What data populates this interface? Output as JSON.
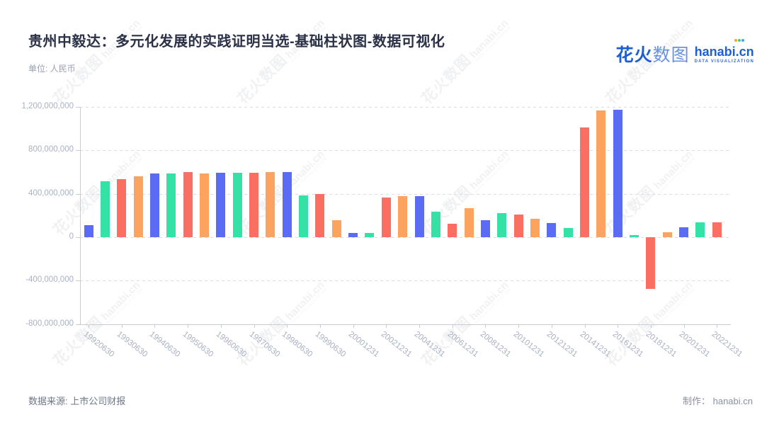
{
  "header": {
    "title": "贵州中毅达：多元化发展的实践证明当选-基础柱状图-数据可视化",
    "unit_label": "单位: 人民币"
  },
  "logo": {
    "cjk_strong": "花火",
    "cjk_light": "数图",
    "domain": "hanabi.cn",
    "caption": "DATA VISUALIZATION"
  },
  "watermark": {
    "cjk": "花火数图",
    "domain": "hanabi.cn",
    "caption": "DATA VISUALIZATION"
  },
  "footer": {
    "source": "数据来源: 上市公司财报",
    "credit": "制作： hanabi.cn"
  },
  "colors": {
    "blue": "#5A6CF3",
    "green": "#35E1A4",
    "red": "#FB6E62",
    "orange": "#FCA45F",
    "logo_blue": "#1E5ED0",
    "title_text": "#2B3147",
    "axis_text": "#A9B1C2",
    "grid": "#DBDDE3",
    "axis_line": "#C8CCD4",
    "spark_orange": "#F7A823",
    "spark_green": "#44C98C",
    "spark_blue": "#3FA8E8"
  },
  "chart_data": {
    "type": "bar",
    "title": "贵州中毅达：多元化发展的实践证明当选-基础柱状图-数据可视化",
    "ylabel": "人民币",
    "ylim": [
      -800000000,
      1200000000
    ],
    "grid": "dashed-horizontal",
    "legend": "none",
    "y_ticks": [
      {
        "value": 1200000000,
        "label": "1,200,000,000"
      },
      {
        "value": 800000000,
        "label": "800,000,000"
      },
      {
        "value": 400000000,
        "label": "400,000,000"
      },
      {
        "value": 0,
        "label": "0"
      },
      {
        "value": -400000000,
        "label": "-400,000,000"
      },
      {
        "value": -800000000,
        "label": "-800,000,000"
      }
    ],
    "x_tick_labels": [
      "19920630",
      "19930630",
      "19940630",
      "19950630",
      "19960630",
      "19970630",
      "19980630",
      "19990630",
      "20001231",
      "20021231",
      "20041231",
      "20061231",
      "20081231",
      "20101231",
      "20121231",
      "20141231",
      "20161231",
      "20181231",
      "20201231",
      "20221231"
    ],
    "x_label_every": 2,
    "bars": [
      {
        "value": 110000000,
        "color": "blue"
      },
      {
        "value": 515000000,
        "color": "green"
      },
      {
        "value": 535000000,
        "color": "red"
      },
      {
        "value": 560000000,
        "color": "orange"
      },
      {
        "value": 585000000,
        "color": "blue"
      },
      {
        "value": 590000000,
        "color": "green"
      },
      {
        "value": 600000000,
        "color": "red"
      },
      {
        "value": 590000000,
        "color": "orange"
      },
      {
        "value": 595000000,
        "color": "blue"
      },
      {
        "value": 595000000,
        "color": "green"
      },
      {
        "value": 595000000,
        "color": "red"
      },
      {
        "value": 600000000,
        "color": "orange"
      },
      {
        "value": 600000000,
        "color": "blue"
      },
      {
        "value": 387000000,
        "color": "green"
      },
      {
        "value": 396000000,
        "color": "red"
      },
      {
        "value": 156000000,
        "color": "orange"
      },
      {
        "value": 39000000,
        "color": "blue"
      },
      {
        "value": 37000000,
        "color": "green"
      },
      {
        "value": 365000000,
        "color": "red"
      },
      {
        "value": 380000000,
        "color": "orange"
      },
      {
        "value": 378000000,
        "color": "blue"
      },
      {
        "value": 235000000,
        "color": "green"
      },
      {
        "value": 124000000,
        "color": "red"
      },
      {
        "value": 265000000,
        "color": "orange"
      },
      {
        "value": 157000000,
        "color": "blue"
      },
      {
        "value": 220000000,
        "color": "green"
      },
      {
        "value": 207000000,
        "color": "red"
      },
      {
        "value": 168000000,
        "color": "orange"
      },
      {
        "value": 130000000,
        "color": "blue"
      },
      {
        "value": 83000000,
        "color": "green"
      },
      {
        "value": 1010000000,
        "color": "red"
      },
      {
        "value": 1165000000,
        "color": "orange"
      },
      {
        "value": 1175000000,
        "color": "blue"
      },
      {
        "value": 18000000,
        "color": "green"
      },
      {
        "value": -475000000,
        "color": "red"
      },
      {
        "value": 45000000,
        "color": "orange"
      },
      {
        "value": 90000000,
        "color": "blue"
      },
      {
        "value": 135000000,
        "color": "green"
      },
      {
        "value": 140000000,
        "color": "red"
      }
    ]
  }
}
